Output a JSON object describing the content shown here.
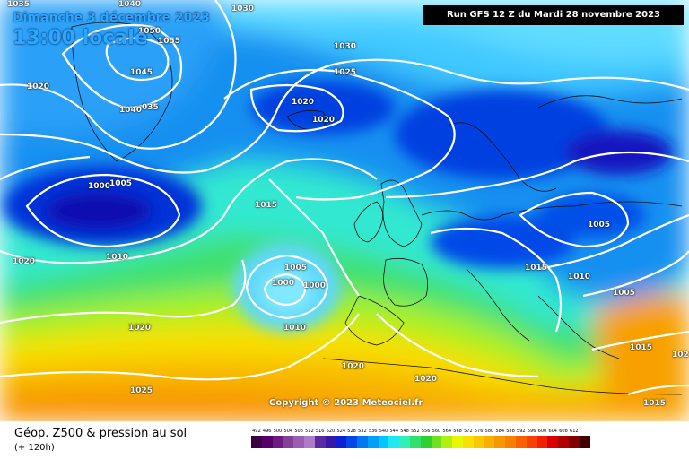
{
  "header": {
    "date": "Dimanche 3 décembre 2023",
    "time": "13:00 locale",
    "run": "Run GFS 12 Z du Mardi 28 novembre 2023"
  },
  "copyright": "Copyright © 2023 Meteociel.fr",
  "legend": {
    "title": "Géop. Z500 & pression au sol",
    "subtitle": "(+ 120h)",
    "scale": [
      {
        "v": "492",
        "c": "#3a0040"
      },
      {
        "v": "496",
        "c": "#58006a"
      },
      {
        "v": "500",
        "c": "#6e1a80"
      },
      {
        "v": "504",
        "c": "#844098"
      },
      {
        "v": "508",
        "c": "#9c5cb4"
      },
      {
        "v": "512",
        "c": "#b07ac8"
      },
      {
        "v": "516",
        "c": "#5a2aa0"
      },
      {
        "v": "520",
        "c": "#3818a8"
      },
      {
        "v": "524",
        "c": "#1020d0"
      },
      {
        "v": "528",
        "c": "#0048e8"
      },
      {
        "v": "532",
        "c": "#0078f0"
      },
      {
        "v": "536",
        "c": "#00a0f8"
      },
      {
        "v": "540",
        "c": "#00c8ff"
      },
      {
        "v": "544",
        "c": "#20e8f0"
      },
      {
        "v": "548",
        "c": "#30f0b8"
      },
      {
        "v": "552",
        "c": "#30e070"
      },
      {
        "v": "556",
        "c": "#30d030"
      },
      {
        "v": "560",
        "c": "#70e020"
      },
      {
        "v": "564",
        "c": "#b0f010"
      },
      {
        "v": "568",
        "c": "#e8f800"
      },
      {
        "v": "572",
        "c": "#f8e000"
      },
      {
        "v": "576",
        "c": "#f8c800"
      },
      {
        "v": "580",
        "c": "#f8b000"
      },
      {
        "v": "584",
        "c": "#f89800"
      },
      {
        "v": "588",
        "c": "#f88000"
      },
      {
        "v": "592",
        "c": "#f86000"
      },
      {
        "v": "596",
        "c": "#f84000"
      },
      {
        "v": "600",
        "c": "#f02000"
      },
      {
        "v": "604",
        "c": "#d80000"
      },
      {
        "v": "608",
        "c": "#b00000"
      },
      {
        "v": "612",
        "c": "#800000"
      },
      {
        "v": "",
        "c": "#400000"
      }
    ]
  },
  "isobars": [
    {
      "id": "l1035a",
      "text": "1035"
    },
    {
      "id": "l1040a",
      "text": "1040"
    },
    {
      "id": "l1030a",
      "text": "1030"
    },
    {
      "id": "l1050",
      "text": "1050"
    },
    {
      "id": "l1055",
      "text": "1055"
    },
    {
      "id": "l1045",
      "text": "1045"
    },
    {
      "id": "l1040b",
      "text": "1040"
    },
    {
      "id": "l1035b",
      "text": "035"
    },
    {
      "id": "l1020a",
      "text": "1020"
    },
    {
      "id": "l1030b",
      "text": "1030"
    },
    {
      "id": "l1025a",
      "text": "1025"
    },
    {
      "id": "l1020b",
      "text": "1020"
    },
    {
      "id": "l1020c",
      "text": "1020"
    },
    {
      "id": "l1000a",
      "text": "1000"
    },
    {
      "id": "l1005a",
      "text": "1005"
    },
    {
      "id": "l1015a",
      "text": "1015"
    },
    {
      "id": "l1010a",
      "text": "1010"
    },
    {
      "id": "l1020d",
      "text": "1020"
    },
    {
      "id": "l1005b",
      "text": "1005"
    },
    {
      "id": "l1000b",
      "text": "1000"
    },
    {
      "id": "l1000c",
      "text": "1000"
    },
    {
      "id": "l1010b",
      "text": "1010"
    },
    {
      "id": "l1020e",
      "text": "1020"
    },
    {
      "id": "l1025b",
      "text": "1025"
    },
    {
      "id": "l1020f",
      "text": "1020"
    },
    {
      "id": "l1020g",
      "text": "1020"
    },
    {
      "id": "l1015b",
      "text": "1015"
    },
    {
      "id": "l1010c",
      "text": "1010"
    },
    {
      "id": "l1005c",
      "text": "1005"
    },
    {
      "id": "l1005d",
      "text": "1005"
    },
    {
      "id": "l1015c",
      "text": "1015"
    },
    {
      "id": "l1015d",
      "text": "1015"
    },
    {
      "id": "l102",
      "text": "102"
    }
  ]
}
